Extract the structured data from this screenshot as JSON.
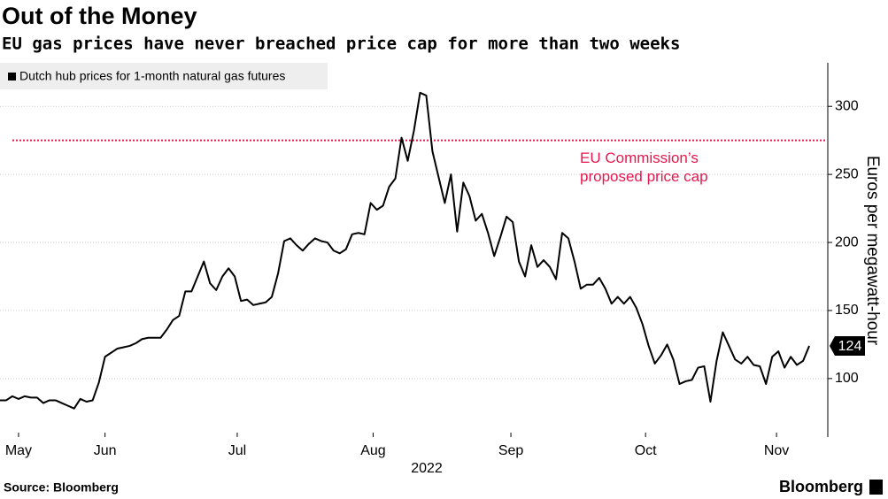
{
  "chart_data": {
    "type": "line",
    "title": "Out of the Money",
    "subtitle": "EU gas prices have never breached price cap for more than two weeks",
    "ylabel": "Euros per megawatt-hour",
    "xlabel": "2022",
    "source": "Source: Bloomberg",
    "brand": "Bloomberg",
    "series": [
      {
        "name": "Dutch hub prices for 1-month natural gas futures",
        "color": "#000000",
        "values": [
          84,
          84,
          87,
          85,
          87,
          86,
          86,
          82,
          84,
          84,
          82,
          80,
          78,
          85,
          83,
          84,
          97,
          116,
          119,
          122,
          123,
          124,
          126,
          129,
          130,
          130,
          130,
          136,
          143,
          146,
          164,
          164,
          175,
          186,
          170,
          165,
          175,
          181,
          175,
          157,
          158,
          154,
          155,
          156,
          160,
          177,
          201,
          203,
          198,
          194,
          199,
          203,
          201,
          200,
          194,
          192,
          195,
          206,
          207,
          206,
          229,
          224,
          227,
          241,
          247,
          277,
          260,
          282,
          310,
          308,
          267,
          248,
          229,
          250,
          208,
          244,
          234,
          216,
          221,
          207,
          190,
          204,
          219,
          215,
          186,
          175,
          198,
          182,
          187,
          182,
          173,
          207,
          203,
          186,
          166,
          169,
          169,
          174,
          166,
          155,
          160,
          155,
          160,
          152,
          140,
          124,
          111,
          117,
          125,
          114,
          96,
          98,
          99,
          108,
          109,
          83,
          113,
          134,
          124,
          114,
          111,
          116,
          110,
          109,
          96,
          116,
          120,
          108,
          116,
          110,
          113,
          124
        ]
      }
    ],
    "xlim": [
      0,
      134
    ],
    "xticks": [
      {
        "value": 3,
        "label": "May"
      },
      {
        "value": 17,
        "label": "Jun"
      },
      {
        "value": 38.4,
        "label": "Jul"
      },
      {
        "value": 60.4,
        "label": "Aug"
      },
      {
        "value": 82.7,
        "label": "Sep"
      },
      {
        "value": 104.5,
        "label": "Oct"
      },
      {
        "value": 125.7,
        "label": "Nov"
      }
    ],
    "ylim": [
      57,
      332
    ],
    "yticks": [
      100,
      150,
      200,
      250,
      300
    ],
    "grid": true,
    "annotation": {
      "value": 275,
      "color": "#e8174d",
      "text": [
        "EU Commission’s",
        "proposed price cap"
      ]
    }
  }
}
